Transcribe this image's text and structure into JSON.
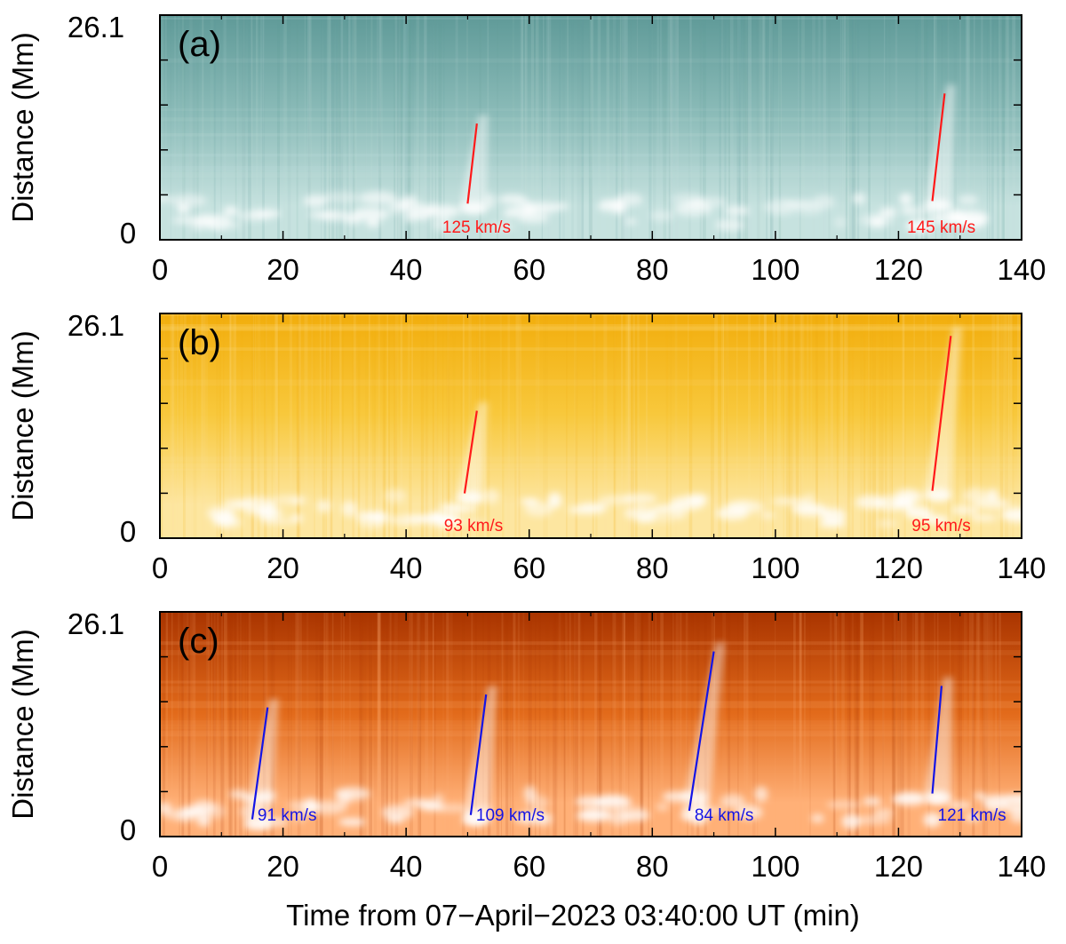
{
  "chart_data": [
    {
      "type": "heatmap",
      "panel_label": "(a)",
      "colormap": "teal",
      "colors": {
        "dark": "#5f9a98",
        "mid": "#8cbcb9",
        "light": "#c6e2df",
        "white": "#ffffff"
      },
      "line_color": "#ff1a1a",
      "xlim": [
        0,
        140
      ],
      "ylim": [
        0,
        26.1
      ],
      "xticks": [
        0,
        20,
        40,
        60,
        80,
        100,
        120,
        140
      ],
      "ytick_labels": [
        "0",
        "26.1"
      ],
      "ylabel": "Distance (Mm)",
      "xlabel": "",
      "annotations": [
        {
          "label": "125 km/s",
          "x0": 50.0,
          "y0": 4.2,
          "x1": 51.5,
          "y1": 13.5
        },
        {
          "label": "145 km/s",
          "x0": 125.5,
          "y0": 4.5,
          "x1": 127.5,
          "y1": 17.0
        }
      ]
    },
    {
      "type": "heatmap",
      "panel_label": "(b)",
      "colormap": "gold",
      "colors": {
        "dark": "#f2ad0c",
        "mid": "#f8c83c",
        "light": "#fde6a0",
        "white": "#ffffff"
      },
      "line_color": "#ff1a1a",
      "xlim": [
        0,
        140
      ],
      "ylim": [
        0,
        26.1
      ],
      "xticks": [
        0,
        20,
        40,
        60,
        80,
        100,
        120,
        140
      ],
      "ytick_labels": [
        "0",
        "26.1"
      ],
      "ylabel": "Distance (Mm)",
      "xlabel": "",
      "annotations": [
        {
          "label": "93 km/s",
          "x0": 49.5,
          "y0": 5.2,
          "x1": 51.5,
          "y1": 14.8
        },
        {
          "label": "95 km/s",
          "x0": 125.5,
          "y0": 5.5,
          "x1": 128.5,
          "y1": 23.5
        }
      ]
    },
    {
      "type": "heatmap",
      "panel_label": "(c)",
      "colormap": "hot-orange",
      "colors": {
        "dark": "#a93400",
        "mid": "#e26a1a",
        "light": "#ffb077",
        "white": "#ffffff"
      },
      "line_color": "#1414e6",
      "xlim": [
        0,
        140
      ],
      "ylim": [
        0,
        26.1
      ],
      "xticks": [
        0,
        20,
        40,
        60,
        80,
        100,
        120,
        140
      ],
      "ytick_labels": [
        "0",
        "26.1"
      ],
      "ylabel": "Distance (Mm)",
      "xlabel": "Time from 07−April−2023 03:40:00 UT (min)",
      "annotations": [
        {
          "label": "91 km/s",
          "x0": 15.0,
          "y0": 2.0,
          "x1": 17.5,
          "y1": 15.0
        },
        {
          "label": "109 km/s",
          "x0": 50.5,
          "y0": 2.5,
          "x1": 53.0,
          "y1": 16.5
        },
        {
          "label": "84 km/s",
          "x0": 86.0,
          "y0": 3.0,
          "x1": 90.0,
          "y1": 21.5
        },
        {
          "label": "121 km/s",
          "x0": 125.5,
          "y0": 5.0,
          "x1": 127.0,
          "y1": 17.5
        }
      ]
    }
  ]
}
